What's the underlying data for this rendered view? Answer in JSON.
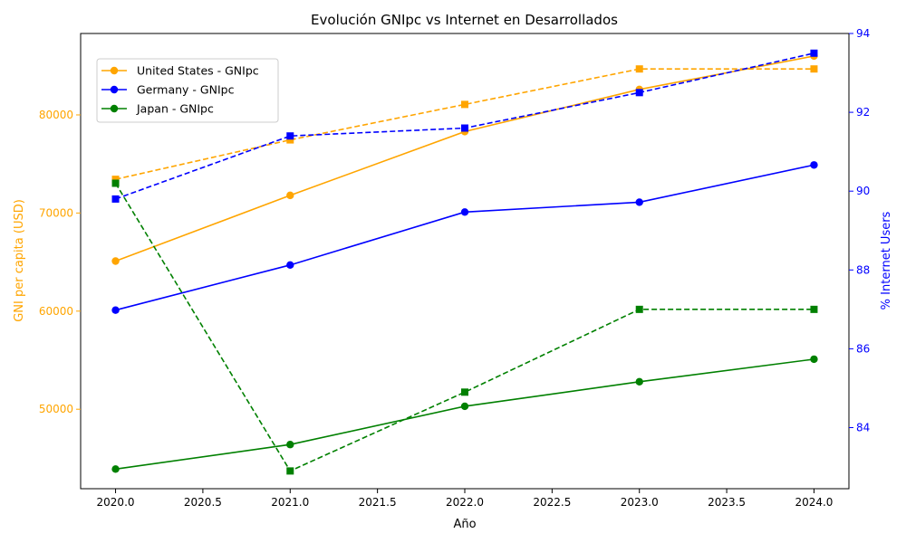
{
  "chart_data": {
    "type": "line",
    "title": "Evolución GNIpc vs Internet en Desarrollados",
    "xlabel": "Año",
    "ylabel_left": "GNI per capita (USD)",
    "ylabel_right": "% Internet Users",
    "x": [
      2020,
      2021,
      2022,
      2023,
      2024
    ],
    "xlim": [
      2019.8,
      2024.2
    ],
    "ylim_left": [
      41900,
      88300
    ],
    "ylim_right": [
      82.45,
      94.0
    ],
    "xticks": [
      2020.0,
      2020.5,
      2021.0,
      2021.5,
      2022.0,
      2022.5,
      2023.0,
      2023.5,
      2024.0
    ],
    "xtick_labels": [
      "2020.0",
      "2020.5",
      "2021.0",
      "2021.5",
      "2022.0",
      "2022.5",
      "2023.0",
      "2023.5",
      "2024.0"
    ],
    "yticks_left": [
      50000,
      60000,
      70000,
      80000
    ],
    "ytick_labels_left": [
      "50000",
      "60000",
      "70000",
      "80000"
    ],
    "yticks_right": [
      84,
      86,
      88,
      90,
      92,
      94
    ],
    "ytick_labels_right": [
      "84",
      "86",
      "88",
      "90",
      "92",
      "94"
    ],
    "left_axis_color": "#ffa500",
    "right_axis_color": "#0000ff",
    "grid": false,
    "legend_position": "upper-left",
    "legend": [
      {
        "label": "United States - GNIpc",
        "color": "#ffa500"
      },
      {
        "label": "Germany - GNIpc",
        "color": "#0000ff"
      },
      {
        "label": "Japan - GNIpc",
        "color": "#008000"
      }
    ],
    "series_gni": [
      {
        "country": "United States",
        "color": "#ffa500",
        "axis": "left",
        "style": "solid",
        "marker": "circle",
        "values": [
          65100,
          71800,
          78300,
          82600,
          86000
        ]
      },
      {
        "country": "Germany",
        "color": "#0000ff",
        "axis": "left",
        "style": "solid",
        "marker": "circle",
        "values": [
          60100,
          64700,
          70100,
          71100,
          74900
        ]
      },
      {
        "country": "Japan",
        "color": "#008000",
        "axis": "left",
        "style": "solid",
        "marker": "circle",
        "values": [
          43900,
          46400,
          50300,
          52800,
          55100
        ]
      }
    ],
    "series_internet": [
      {
        "country": "United States",
        "color": "#ffa500",
        "axis": "right",
        "style": "dashed",
        "marker": "square",
        "values": [
          90.3,
          91.3,
          92.2,
          93.1,
          93.1
        ]
      },
      {
        "country": "Germany",
        "color": "#0000ff",
        "axis": "right",
        "style": "dashed",
        "marker": "square",
        "values": [
          89.8,
          91.4,
          91.6,
          92.5,
          93.5
        ]
      },
      {
        "country": "Japan",
        "color": "#008000",
        "axis": "right",
        "style": "dashed",
        "marker": "square",
        "values": [
          90.2,
          82.9,
          84.9,
          87.0,
          87.0
        ]
      }
    ]
  }
}
